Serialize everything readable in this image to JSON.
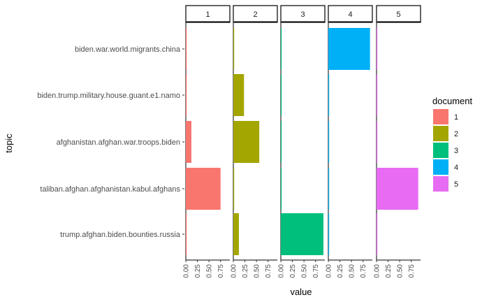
{
  "chart_data": {
    "type": "bar",
    "orientation": "horizontal",
    "faceted": true,
    "facets": [
      "1",
      "2",
      "3",
      "4",
      "5"
    ],
    "categories": [
      "biden.war.world.migrants.china",
      "biden.trump.military.house.guant.e1.namo",
      "afghanistan.afghan.war.troops.biden",
      "taliban.afghan.afghanistan.kabul.afghans",
      "trump.afghan.biden.bounties.russia"
    ],
    "series": [
      {
        "name": "1",
        "color": "#F8766D",
        "values": [
          0.005,
          0.005,
          0.12,
          0.75,
          0.005
        ]
      },
      {
        "name": "2",
        "color": "#A3A500",
        "values": [
          0.005,
          0.23,
          0.56,
          0.005,
          0.12
        ]
      },
      {
        "name": "3",
        "color": "#00BF7D",
        "values": [
          0.005,
          0.005,
          0.005,
          0.005,
          0.92
        ]
      },
      {
        "name": "4",
        "color": "#00B0F6",
        "values": [
          0.9,
          0.005,
          0.005,
          0.005,
          0.005
        ]
      },
      {
        "name": "5",
        "color": "#E76BF3",
        "values": [
          0.005,
          0.005,
          0.005,
          0.9,
          0.005
        ]
      }
    ],
    "xlabel": "value",
    "ylabel": "topic",
    "xlim": [
      0,
      0.95
    ],
    "xticks": [
      "0.00",
      "0.25",
      "0.50",
      "0.75"
    ],
    "legend": {
      "title": "document",
      "position": "right",
      "entries": [
        "1",
        "2",
        "3",
        "4",
        "5"
      ]
    },
    "grid": false
  }
}
